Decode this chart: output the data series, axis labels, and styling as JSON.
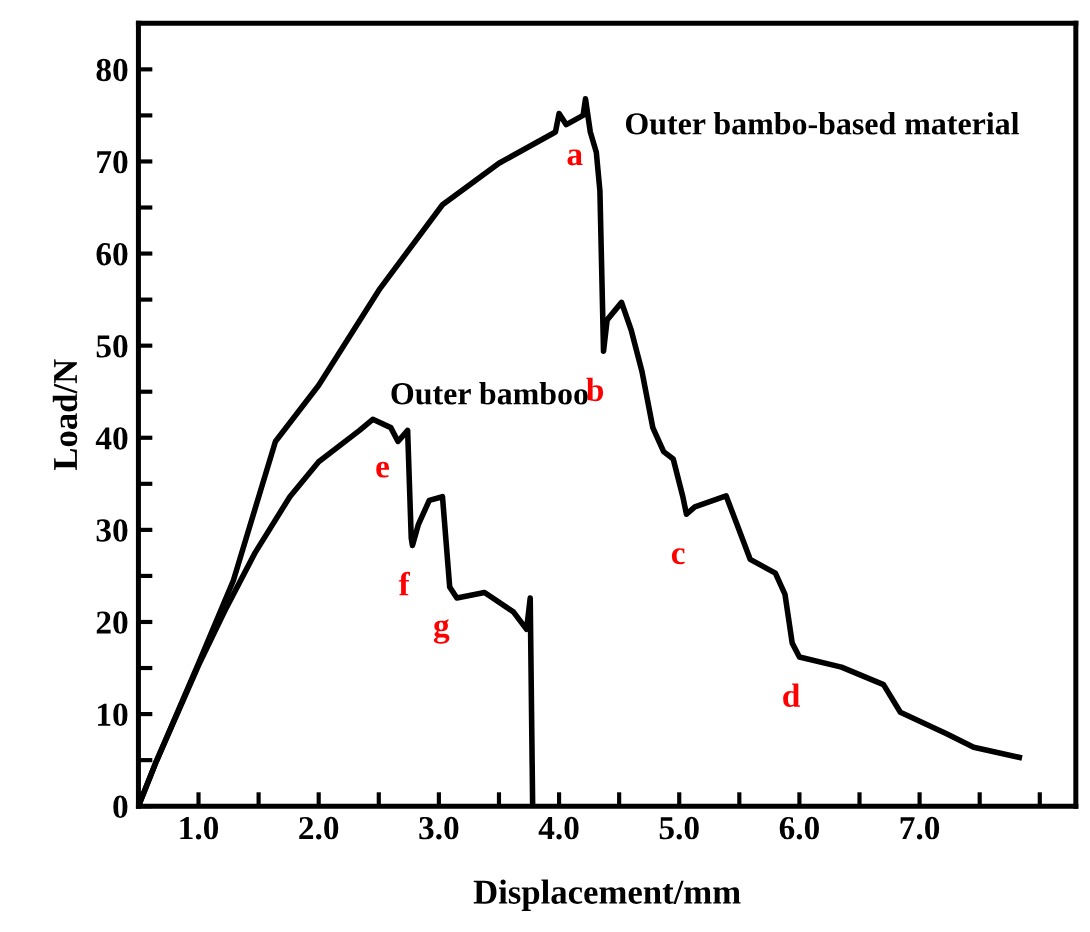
{
  "chart_data": {
    "type": "line",
    "xlabel": "Displacement/mm",
    "ylabel": "Load/N",
    "xlim": [
      0.5,
      8.3
    ],
    "ylim": [
      0,
      85
    ],
    "xticks": [
      {
        "value": 1.0,
        "label": "1.0"
      },
      {
        "value": 1.5,
        "label": null
      },
      {
        "value": 2.0,
        "label": "2.0"
      },
      {
        "value": 2.5,
        "label": null
      },
      {
        "value": 3.0,
        "label": "3.0"
      },
      {
        "value": 3.5,
        "label": null
      },
      {
        "value": 4.0,
        "label": "4.0"
      },
      {
        "value": 4.5,
        "label": null
      },
      {
        "value": 5.0,
        "label": "5.0"
      },
      {
        "value": 5.5,
        "label": null
      },
      {
        "value": 6.0,
        "label": "6.0"
      },
      {
        "value": 6.5,
        "label": null
      },
      {
        "value": 7.0,
        "label": "7.0"
      },
      {
        "value": 7.5,
        "label": null
      },
      {
        "value": 8.0,
        "label": null
      }
    ],
    "yticks": [
      0,
      {
        "value": 5,
        "label": null
      },
      10,
      {
        "value": 15,
        "label": null
      },
      20,
      {
        "value": 25,
        "label": null
      },
      30,
      {
        "value": 35,
        "label": null
      },
      40,
      {
        "value": 45,
        "label": null
      },
      50,
      {
        "value": 55,
        "label": null
      },
      60,
      {
        "value": 65,
        "label": null
      },
      70,
      {
        "value": 75,
        "label": null
      },
      80
    ],
    "grid": false,
    "legend": false,
    "marker": "none",
    "line_style": "solid",
    "series": [
      {
        "name": "Outer bambo-based material",
        "color": "#000000",
        "x": [
          0.5,
          0.65,
          1.0,
          1.29,
          1.64,
          2.0,
          2.51,
          3.03,
          3.5,
          3.97,
          4.0,
          4.06,
          4.2,
          4.22,
          4.26,
          4.31,
          4.34,
          4.37,
          4.4,
          4.52,
          4.6,
          4.69,
          4.78,
          4.87,
          4.95,
          5.03,
          5.06,
          5.13,
          5.39,
          5.48,
          5.59,
          5.8,
          5.88,
          5.94,
          6.0,
          6.35,
          6.7,
          6.84,
          7.22,
          7.45,
          7.83
        ],
        "values": [
          0,
          4.9,
          15.5,
          24.5,
          39.6,
          45.7,
          56.2,
          65.3,
          69.8,
          73.2,
          75.2,
          74,
          75,
          76.8,
          73.2,
          71,
          66.8,
          49.4,
          52.8,
          54.7,
          51.7,
          47.2,
          41.1,
          38.5,
          37.7,
          33.6,
          31.7,
          32.5,
          33.7,
          30.6,
          26.8,
          25.3,
          23,
          17.7,
          16.2,
          15.1,
          13.2,
          10.2,
          7.9,
          6.4,
          5.3
        ]
      },
      {
        "name": "Outer bamboo",
        "color": "#000000",
        "x": [
          0.5,
          0.65,
          1.0,
          1.23,
          1.47,
          1.76,
          2.0,
          2.34,
          2.45,
          2.6,
          2.66,
          2.74,
          2.77,
          2.78,
          2.83,
          2.92,
          3.03,
          3.09,
          3.15,
          3.38,
          3.62,
          3.73,
          3.76,
          3.78
        ],
        "values": [
          0,
          4.9,
          15.3,
          21.5,
          27.5,
          33.6,
          37.4,
          40.8,
          42,
          41.1,
          39.6,
          40.8,
          29.1,
          28.3,
          30.6,
          33.2,
          33.6,
          23.8,
          22.6,
          23.2,
          21.1,
          19.2,
          22.6,
          0.4
        ]
      }
    ],
    "annotations": [
      {
        "text": "a",
        "x": 4.2,
        "y": 75
      },
      {
        "text": "b",
        "x": 4.37,
        "y": 49.4
      },
      {
        "text": "c",
        "x": 5.06,
        "y": 31.7
      },
      {
        "text": "d",
        "x": 6.0,
        "y": 16.2
      },
      {
        "text": "e",
        "x": 2.6,
        "y": 41.1
      },
      {
        "text": "f",
        "x": 2.78,
        "y": 28.3
      },
      {
        "text": "g",
        "x": 3.09,
        "y": 23.8
      }
    ]
  }
}
